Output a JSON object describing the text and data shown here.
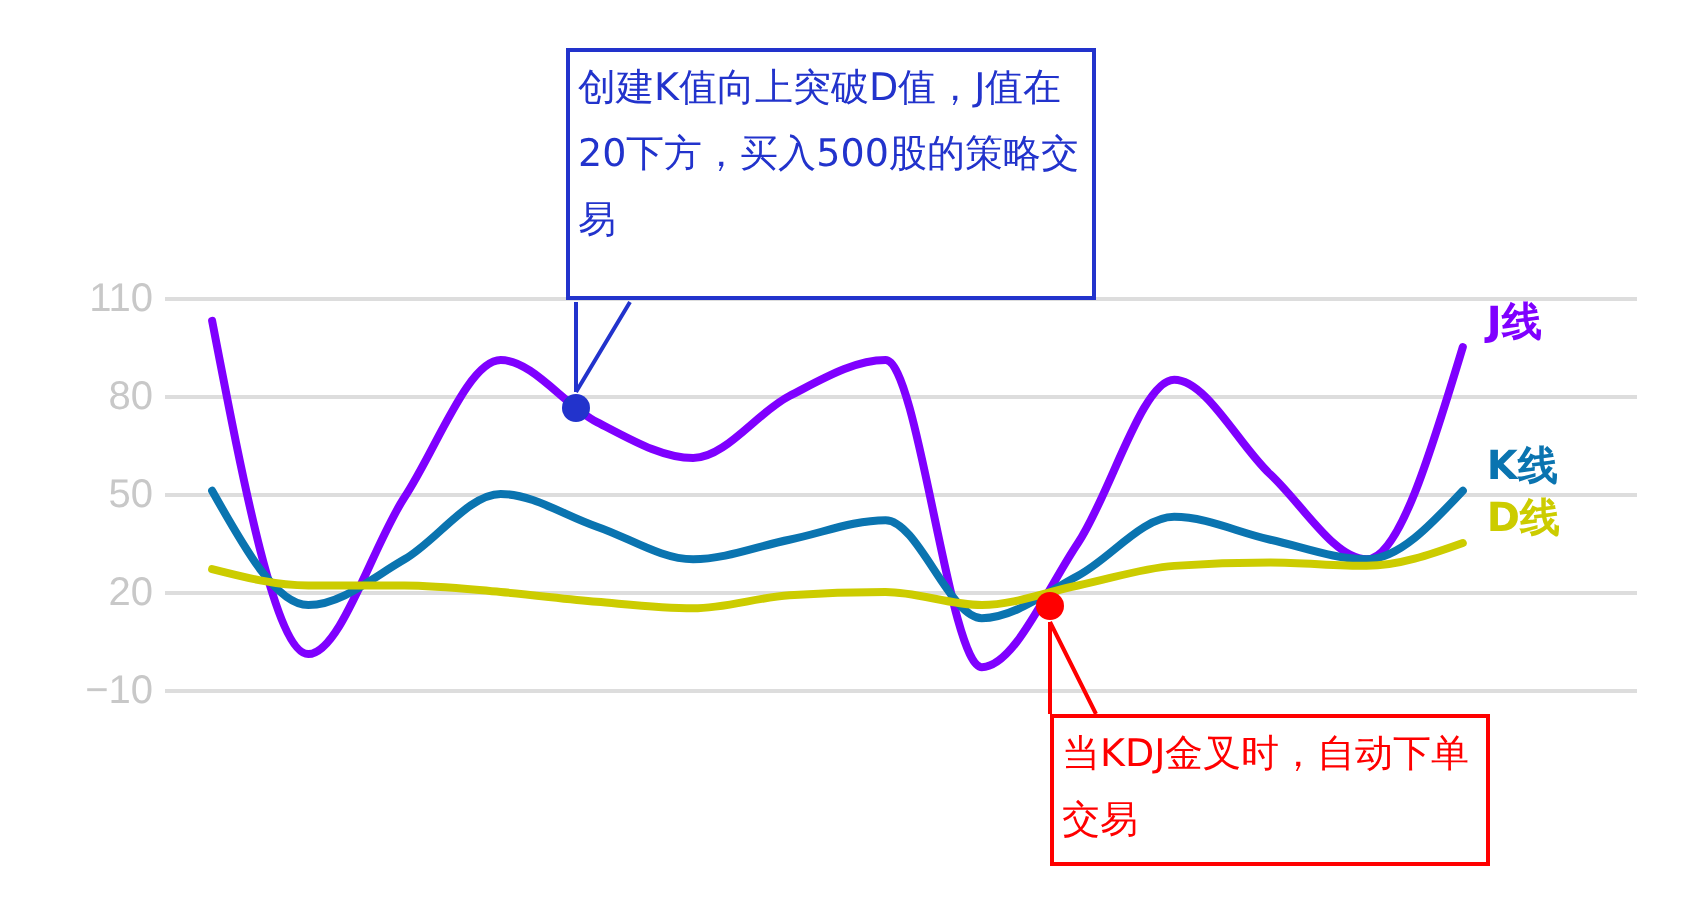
{
  "chart_data": {
    "type": "line",
    "categories": [
      null,
      null,
      null,
      null,
      null,
      null,
      null,
      null,
      null,
      null,
      null,
      null,
      null,
      null
    ],
    "series": [
      {
        "name": "J线",
        "color": "#7f00ff",
        "values": [
          103,
          1,
          49,
          91,
          72,
          61,
          80,
          91,
          -3,
          35,
          85,
          56,
          30,
          95
        ]
      },
      {
        "name": "K线",
        "color": "#0a74b0",
        "values": [
          51,
          16,
          30,
          50,
          40,
          30,
          36,
          42,
          12,
          25,
          43,
          36,
          30,
          51
        ]
      },
      {
        "name": "D线",
        "color": "#cccc00",
        "values": [
          27,
          22,
          22,
          20,
          17,
          15,
          19,
          20,
          16,
          22,
          28,
          29,
          28,
          35
        ]
      }
    ],
    "ylim": [
      -10,
      110
    ],
    "yticks": [
      -10,
      20,
      50,
      80,
      110
    ],
    "grid": "y",
    "tick_labels": "y",
    "annotations": [
      "创建K值向上突破D值，J值在20下方，买入500股的策略交易",
      "当KDJ金叉时，自动下单交易"
    ]
  }
}
